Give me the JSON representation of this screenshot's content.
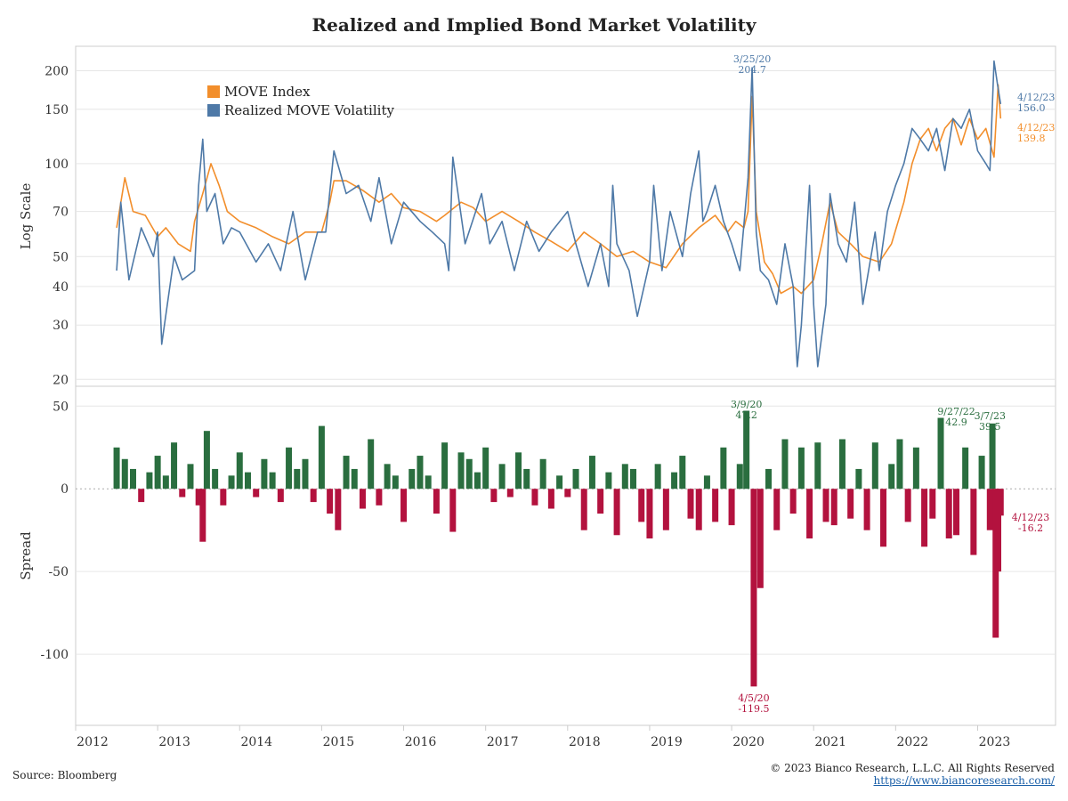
{
  "title": "Realized and Implied Bond Market Volatility",
  "source": "Source: Bloomberg",
  "copyright": "© 2023 Bianco Research, L.L.C. All Rights Reserved",
  "url": "https://www.biancoresearch.com/",
  "colors": {
    "move": "#f28e2b",
    "realized": "#4e79a7",
    "positive": "#2a6e3f",
    "negative": "#b3123e",
    "grid": "#e6e6e6",
    "axis": "#cccccc"
  },
  "chart_data": [
    {
      "type": "line",
      "ylabel": "Log Scale",
      "yscale": "log",
      "ylim": [
        19,
        240
      ],
      "yticks": [
        20,
        30,
        40,
        50,
        70,
        100,
        150,
        200
      ],
      "xlim": [
        2012.0,
        2023.95
      ],
      "xticks": [
        "2012",
        "2013",
        "2014",
        "2015",
        "2016",
        "2017",
        "2018",
        "2019",
        "2020",
        "2021",
        "2022",
        "2023"
      ],
      "legend_position": "top-left",
      "series": [
        {
          "name": "MOVE Index",
          "x": [
            2012.5,
            2012.6,
            2012.7,
            2012.85,
            2013.0,
            2013.1,
            2013.25,
            2013.4,
            2013.45,
            2013.55,
            2013.65,
            2013.75,
            2013.85,
            2014.0,
            2014.2,
            2014.4,
            2014.6,
            2014.8,
            2015.0,
            2015.1,
            2015.15,
            2015.3,
            2015.5,
            2015.7,
            2015.85,
            2016.0,
            2016.2,
            2016.4,
            2016.5,
            2016.7,
            2016.85,
            2017.0,
            2017.2,
            2017.4,
            2017.6,
            2017.8,
            2018.0,
            2018.2,
            2018.4,
            2018.6,
            2018.8,
            2019.0,
            2019.2,
            2019.4,
            2019.6,
            2019.8,
            2019.95,
            2020.05,
            2020.15,
            2020.2,
            2020.25,
            2020.3,
            2020.4,
            2020.5,
            2020.6,
            2020.75,
            2020.85,
            2021.0,
            2021.1,
            2021.2,
            2021.3,
            2021.45,
            2021.6,
            2021.8,
            2021.95,
            2022.1,
            2022.2,
            2022.3,
            2022.4,
            2022.5,
            2022.6,
            2022.7,
            2022.8,
            2022.9,
            2023.0,
            2023.1,
            2023.2,
            2023.25,
            2023.28
          ],
          "values": [
            62,
            90,
            70,
            68,
            58,
            62,
            55,
            52,
            65,
            80,
            100,
            85,
            70,
            65,
            62,
            58,
            55,
            60,
            60,
            75,
            88,
            88,
            82,
            75,
            80,
            72,
            70,
            65,
            68,
            75,
            72,
            65,
            70,
            65,
            60,
            56,
            52,
            60,
            55,
            50,
            52,
            48,
            46,
            55,
            62,
            68,
            60,
            65,
            62,
            70,
            165,
            70,
            48,
            44,
            38,
            40,
            38,
            42,
            55,
            75,
            60,
            55,
            50,
            48,
            55,
            75,
            100,
            120,
            130,
            110,
            130,
            140,
            115,
            140,
            120,
            130,
            105,
            180,
            140
          ]
        },
        {
          "name": "Realized MOVE Volatility",
          "x": [
            2012.5,
            2012.55,
            2012.65,
            2012.8,
            2012.95,
            2013.0,
            2013.05,
            2013.2,
            2013.3,
            2013.45,
            2013.5,
            2013.55,
            2013.6,
            2013.7,
            2013.8,
            2013.9,
            2014.0,
            2014.2,
            2014.35,
            2014.5,
            2014.65,
            2014.8,
            2014.95,
            2015.05,
            2015.15,
            2015.3,
            2015.45,
            2015.6,
            2015.7,
            2015.85,
            2016.0,
            2016.2,
            2016.35,
            2016.5,
            2016.55,
            2016.6,
            2016.75,
            2016.95,
            2017.05,
            2017.2,
            2017.35,
            2017.5,
            2017.65,
            2017.8,
            2018.0,
            2018.1,
            2018.25,
            2018.4,
            2018.5,
            2018.55,
            2018.6,
            2018.75,
            2018.85,
            2019.0,
            2019.05,
            2019.15,
            2019.25,
            2019.4,
            2019.5,
            2019.6,
            2019.65,
            2019.7,
            2019.8,
            2019.9,
            2020.0,
            2020.1,
            2020.2,
            2020.25,
            2020.3,
            2020.35,
            2020.45,
            2020.55,
            2020.65,
            2020.75,
            2020.8,
            2020.85,
            2020.95,
            2021.0,
            2021.05,
            2021.15,
            2021.2,
            2021.3,
            2021.4,
            2021.5,
            2021.6,
            2021.75,
            2021.8,
            2021.9,
            2022.0,
            2022.1,
            2022.2,
            2022.3,
            2022.4,
            2022.5,
            2022.6,
            2022.7,
            2022.8,
            2022.9,
            2023.0,
            2023.1,
            2023.15,
            2023.2,
            2023.25,
            2023.28
          ],
          "values": [
            45,
            75,
            42,
            62,
            50,
            60,
            26,
            50,
            42,
            45,
            85,
            120,
            70,
            80,
            55,
            62,
            60,
            48,
            55,
            45,
            70,
            42,
            60,
            60,
            110,
            80,
            85,
            65,
            90,
            55,
            75,
            65,
            60,
            55,
            45,
            105,
            55,
            80,
            55,
            65,
            45,
            65,
            52,
            60,
            70,
            55,
            40,
            55,
            40,
            85,
            55,
            45,
            32,
            48,
            85,
            45,
            70,
            50,
            80,
            110,
            65,
            70,
            85,
            65,
            55,
            45,
            90,
            204.7,
            60,
            45,
            42,
            35,
            55,
            40,
            22,
            30,
            85,
            35,
            22,
            35,
            80,
            55,
            48,
            75,
            35,
            60,
            45,
            70,
            85,
            100,
            130,
            120,
            110,
            130,
            95,
            140,
            130,
            150,
            110,
            100,
            95,
            215,
            175,
            156
          ]
        }
      ],
      "annotations": [
        {
          "date": "3/25/20",
          "value": "204.7",
          "series": "Realized MOVE Volatility"
        },
        {
          "date": "4/12/23",
          "value": "156.0",
          "series": "Realized MOVE Volatility"
        },
        {
          "date": "4/12/23",
          "value": "139.8",
          "series": "MOVE Index"
        }
      ]
    },
    {
      "type": "bar",
      "ylabel": "Spread",
      "ylim": [
        -143,
        62
      ],
      "yticks": [
        50,
        0,
        -50,
        -100
      ],
      "xlim": [
        2012.0,
        2023.95
      ],
      "x": [
        2012.5,
        2012.6,
        2012.7,
        2012.8,
        2012.9,
        2013.0,
        2013.1,
        2013.2,
        2013.3,
        2013.4,
        2013.5,
        2013.55,
        2013.6,
        2013.7,
        2013.8,
        2013.9,
        2014.0,
        2014.1,
        2014.2,
        2014.3,
        2014.4,
        2014.5,
        2014.6,
        2014.7,
        2014.8,
        2014.9,
        2015.0,
        2015.1,
        2015.2,
        2015.3,
        2015.4,
        2015.5,
        2015.6,
        2015.7,
        2015.8,
        2015.9,
        2016.0,
        2016.1,
        2016.2,
        2016.3,
        2016.4,
        2016.5,
        2016.6,
        2016.7,
        2016.8,
        2016.9,
        2017.0,
        2017.1,
        2017.2,
        2017.3,
        2017.4,
        2017.5,
        2017.6,
        2017.7,
        2017.8,
        2017.9,
        2018.0,
        2018.1,
        2018.2,
        2018.3,
        2018.4,
        2018.5,
        2018.6,
        2018.7,
        2018.8,
        2018.9,
        2019.0,
        2019.1,
        2019.2,
        2019.3,
        2019.4,
        2019.5,
        2019.6,
        2019.7,
        2019.8,
        2019.9,
        2020.0,
        2020.1,
        2020.18,
        2020.27,
        2020.35,
        2020.45,
        2020.55,
        2020.65,
        2020.75,
        2020.85,
        2020.95,
        2021.05,
        2021.15,
        2021.25,
        2021.35,
        2021.45,
        2021.55,
        2021.65,
        2021.75,
        2021.85,
        2021.95,
        2022.05,
        2022.15,
        2022.25,
        2022.35,
        2022.45,
        2022.55,
        2022.65,
        2022.74,
        2022.85,
        2022.95,
        2023.05,
        2023.15,
        2023.18,
        2023.22,
        2023.25,
        2023.28
      ],
      "values": [
        25,
        18,
        12,
        -8,
        10,
        20,
        8,
        28,
        -5,
        15,
        -10,
        -32,
        35,
        12,
        -10,
        8,
        22,
        10,
        -5,
        18,
        10,
        -8,
        25,
        12,
        18,
        -8,
        38,
        -15,
        -25,
        20,
        12,
        -12,
        30,
        -10,
        15,
        8,
        -20,
        12,
        20,
        8,
        -15,
        28,
        -26,
        22,
        18,
        10,
        25,
        -8,
        15,
        -5,
        22,
        12,
        -10,
        18,
        -12,
        8,
        -5,
        12,
        -25,
        20,
        -15,
        10,
        -28,
        15,
        12,
        -20,
        -30,
        15,
        -25,
        10,
        20,
        -18,
        -25,
        8,
        -20,
        25,
        -22,
        15,
        47.2,
        -119.5,
        -60,
        12,
        -25,
        30,
        -15,
        25,
        -30,
        28,
        -20,
        -22,
        30,
        -18,
        12,
        -25,
        28,
        -35,
        15,
        30,
        -20,
        25,
        -35,
        -18,
        42.9,
        -30,
        -28,
        25,
        -40,
        20,
        -25,
        39.5,
        -90,
        -50,
        -16.2
      ],
      "annotations": [
        {
          "date": "3/9/20",
          "value": "47.2"
        },
        {
          "date": "4/5/20",
          "value": "-119.5"
        },
        {
          "date": "9/27/22",
          "value": "42.9"
        },
        {
          "date": "3/7/23",
          "value": "39.5"
        },
        {
          "date": "4/12/23",
          "value": "-16.2"
        }
      ]
    }
  ]
}
